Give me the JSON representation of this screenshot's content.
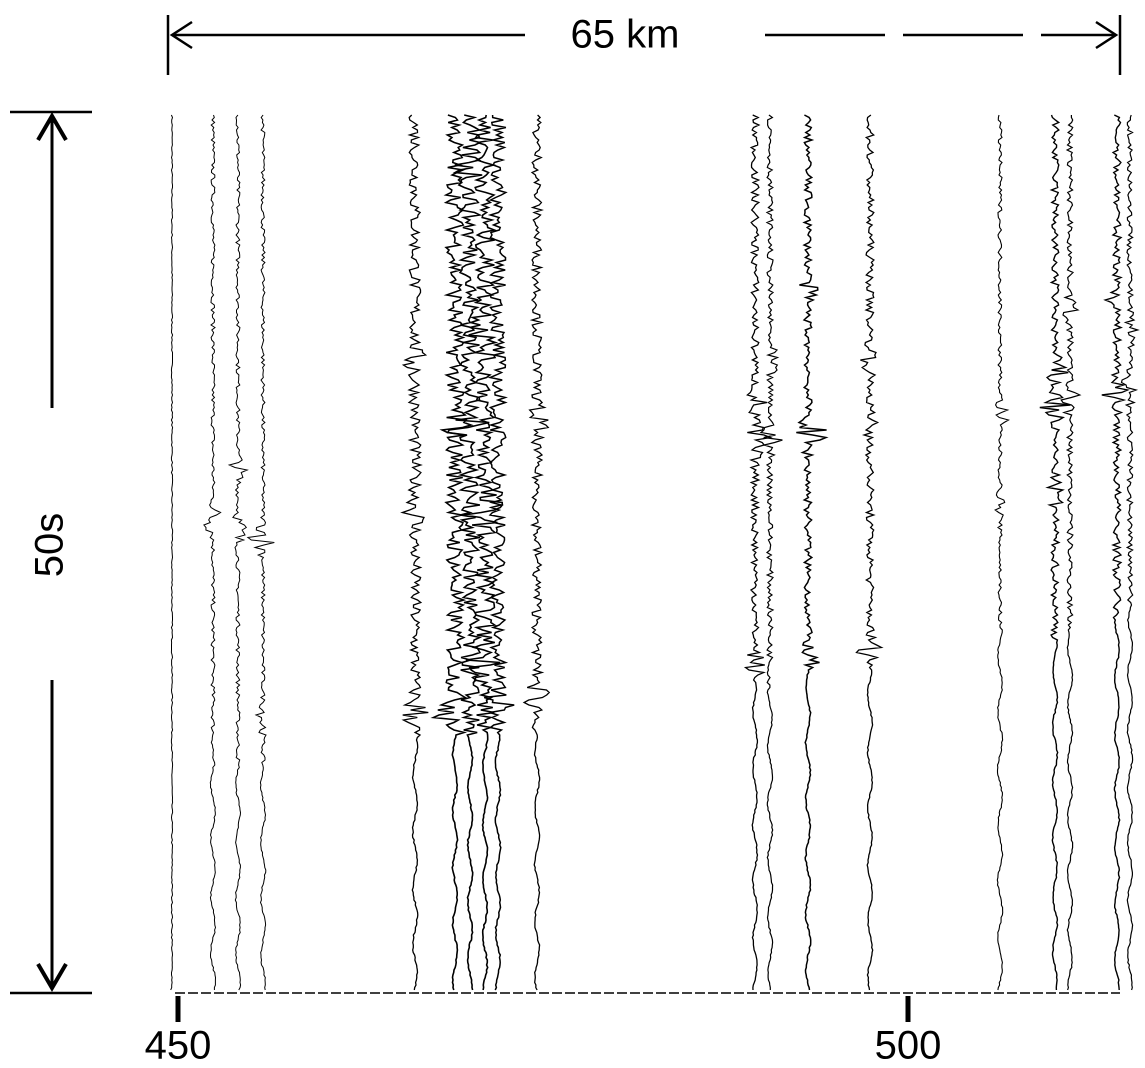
{
  "scale_bars": {
    "horizontal": "65 km",
    "vertical": "50s"
  },
  "axis_labels": [
    "450",
    "500"
  ]
}
